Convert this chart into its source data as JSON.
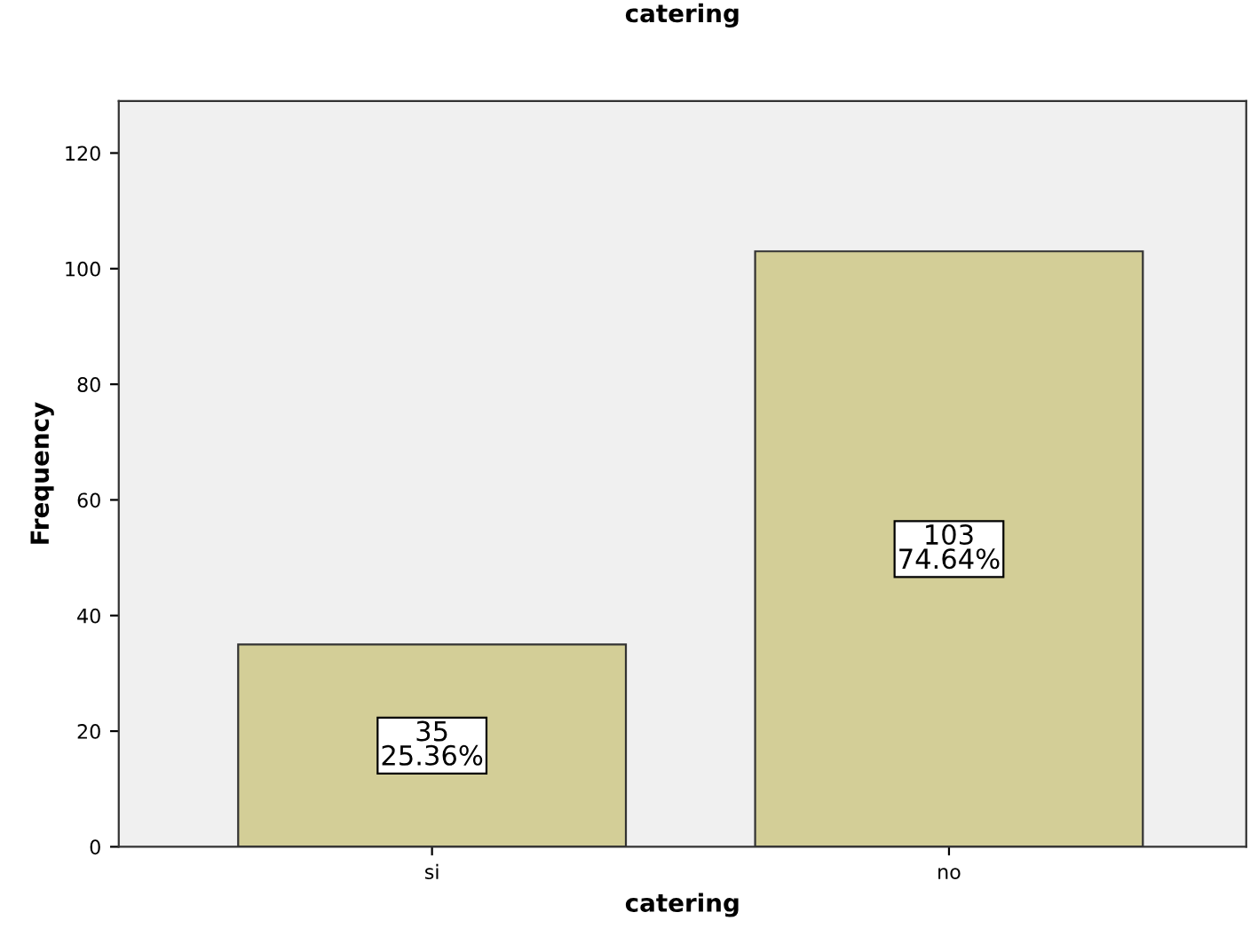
{
  "chart_data": {
    "type": "bar",
    "title": "catering",
    "xlabel": "catering",
    "ylabel": "Frequency",
    "categories": [
      "si",
      "no"
    ],
    "values": [
      35,
      103
    ],
    "value_labels": [
      "35\n25.36%",
      "103\n74.64%"
    ],
    "color": "#d3ce97",
    "ylim": [
      0,
      129
    ],
    "yticks": [
      0,
      20,
      40,
      60,
      80,
      100,
      120
    ],
    "grid": false,
    "legend": false
  }
}
